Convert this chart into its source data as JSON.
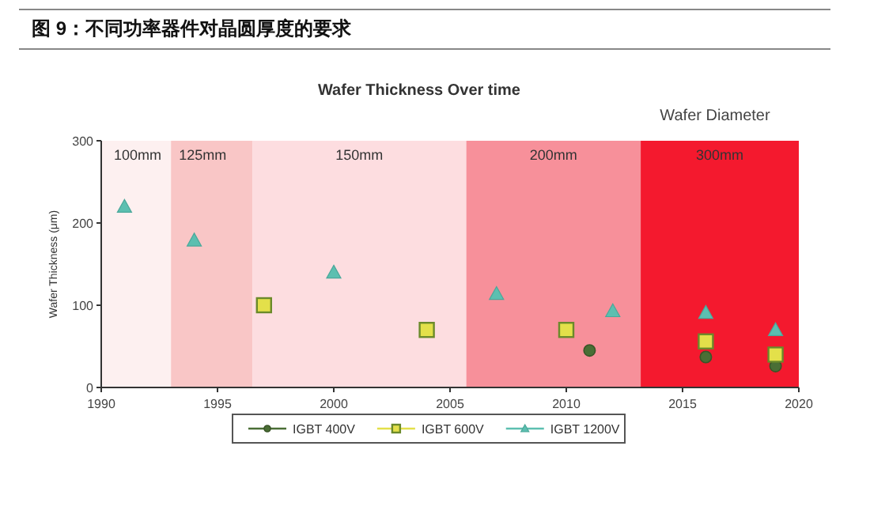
{
  "chart_data": {
    "type": "scatter",
    "title": "图 9：不同功率器件对晶圆厚度的要求",
    "subtitle": "Wafer Thickness Over time",
    "ylabel": "Wafer Thickness (μm)",
    "annotations": [
      "Wafer Diameter"
    ],
    "xlim": [
      1990,
      2020
    ],
    "xticks": [
      1990,
      1995,
      2000,
      2005,
      2010,
      2015,
      2020
    ],
    "ylim": [
      0,
      300
    ],
    "yticks": [
      0,
      100,
      200,
      300
    ],
    "bands": [
      {
        "axis": "x",
        "from": 1990,
        "to": 1993,
        "label": "100mm",
        "color": "#fdf0f0"
      },
      {
        "axis": "x",
        "from": 1993,
        "to": 1996.5,
        "label": "125mm",
        "color": "#f9c6c6"
      },
      {
        "axis": "x",
        "from": 1996.5,
        "to": 2005.7,
        "label": "150mm",
        "color": "#fddde0"
      },
      {
        "axis": "x",
        "from": 2005.7,
        "to": 2013.2,
        "label": "200mm",
        "color": "#f7909a"
      },
      {
        "axis": "x",
        "from": 2013.2,
        "to": 2020,
        "label": "300mm",
        "color": "#f4192e"
      }
    ],
    "series": [
      {
        "name": "IGBT 400V",
        "color": "#4a6e35",
        "marker": "circle",
        "x": [
          2011,
          2016,
          2019
        ],
        "values": [
          45,
          37,
          26
        ]
      },
      {
        "name": "IGBT 600V",
        "color": "#e3e04a",
        "marker": "square",
        "x": [
          1997,
          2004,
          2010,
          2016,
          2019
        ],
        "values": [
          100,
          70,
          70,
          56,
          40
        ]
      },
      {
        "name": "IGBT 1200V",
        "color": "#5cbfb0",
        "marker": "triangle",
        "x": [
          1991,
          1994,
          2000,
          2007,
          2012,
          2016,
          2019
        ],
        "values": [
          220,
          179,
          140,
          114,
          93,
          91,
          70
        ]
      }
    ],
    "legend": "bottom",
    "grid": false
  }
}
